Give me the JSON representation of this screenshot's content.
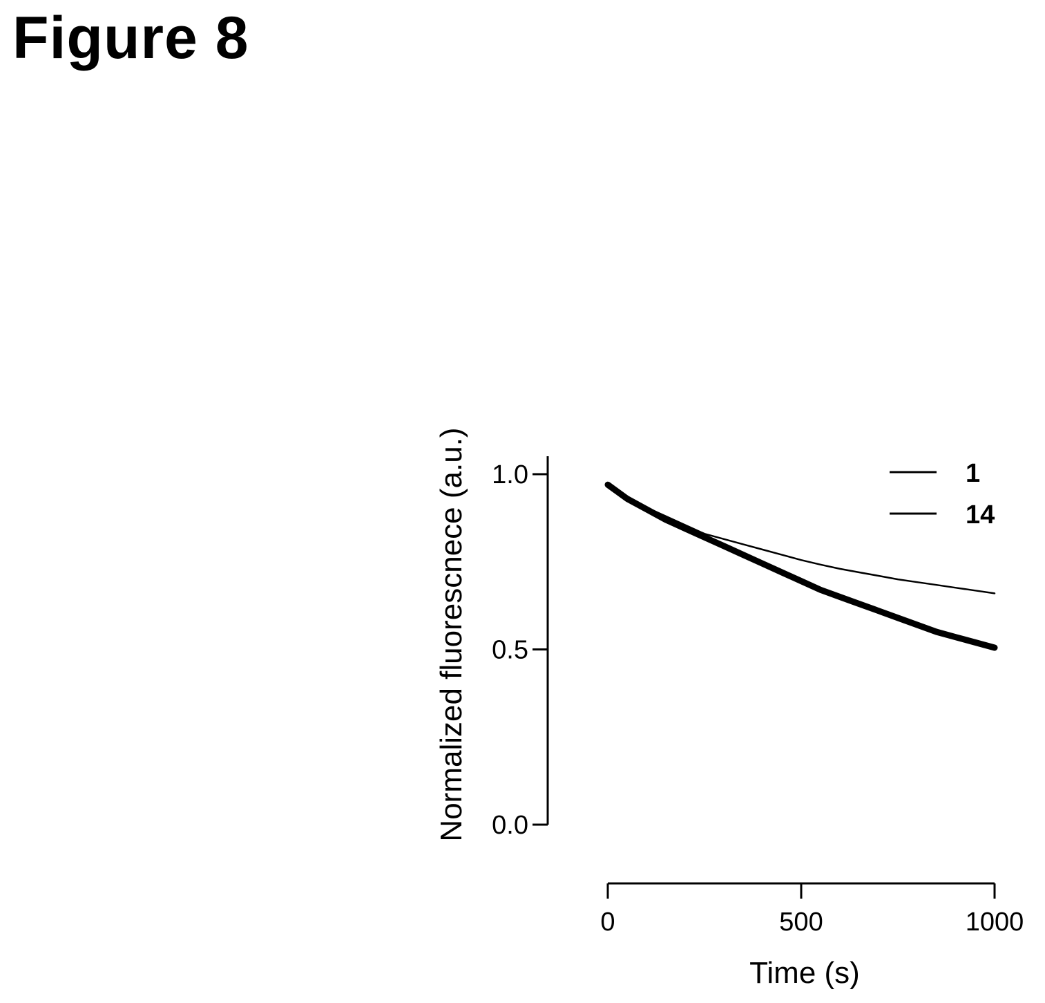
{
  "figure": {
    "title": "Figure 8"
  },
  "chart_data": {
    "type": "line",
    "title": "",
    "xlabel": "Time (s)",
    "ylabel": "Normalized fluorescnece (a.u.)",
    "xlim": [
      0,
      1000
    ],
    "ylim": [
      0,
      1.0
    ],
    "xticks": [
      0,
      500,
      1000
    ],
    "xtick_labels": [
      "0",
      "500",
      "1000"
    ],
    "yticks": [
      0.0,
      0.5,
      1.0
    ],
    "ytick_labels": [
      "0.0",
      "0.5",
      "1.0"
    ],
    "grid": false,
    "legend_position": "top-right",
    "series": [
      {
        "name": "1",
        "color": "#000000",
        "x": [
          0,
          50,
          100,
          150,
          200,
          250,
          300,
          350,
          400,
          450,
          500,
          550,
          600,
          650,
          700,
          750,
          800,
          850,
          900,
          950,
          1000
        ],
        "values": [
          0.97,
          0.93,
          0.9,
          0.87,
          0.845,
          0.82,
          0.795,
          0.77,
          0.745,
          0.72,
          0.695,
          0.67,
          0.65,
          0.63,
          0.61,
          0.59,
          0.57,
          0.55,
          0.535,
          0.52,
          0.505
        ]
      },
      {
        "name": "14",
        "color": "#000000",
        "x": [
          0,
          50,
          100,
          150,
          200,
          250,
          300,
          350,
          400,
          450,
          500,
          550,
          600,
          650,
          700,
          750,
          800,
          850,
          900,
          950,
          1000
        ],
        "values": [
          0.97,
          0.935,
          0.905,
          0.88,
          0.855,
          0.83,
          0.815,
          0.8,
          0.785,
          0.77,
          0.755,
          0.742,
          0.73,
          0.72,
          0.71,
          0.7,
          0.692,
          0.684,
          0.676,
          0.668,
          0.66
        ]
      }
    ]
  }
}
